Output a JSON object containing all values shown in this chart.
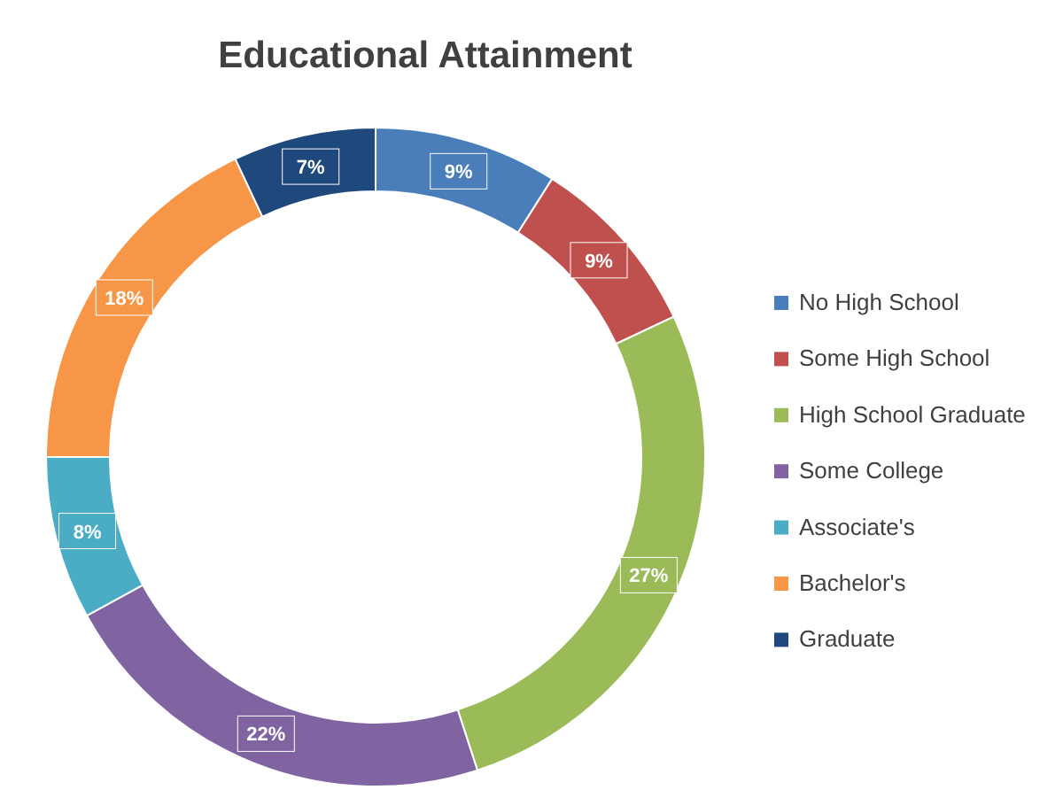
{
  "chart_data": {
    "type": "donut",
    "title": "Educational Attainment",
    "categories": [
      "No High School",
      "Some High School",
      "High School Graduate",
      "Some College",
      "Associate's",
      "Bachelor's",
      "Graduate"
    ],
    "values": [
      9,
      9,
      27,
      22,
      8,
      18,
      7
    ],
    "colors": [
      "#4a7ebb",
      "#c0504d",
      "#9bbb59",
      "#8064a2",
      "#4bacc6",
      "#f79646",
      "#1f497d"
    ],
    "value_labels": [
      "9%",
      "9%",
      "27%",
      "22%",
      "8%",
      "18%",
      "7%"
    ],
    "legend": "right"
  }
}
